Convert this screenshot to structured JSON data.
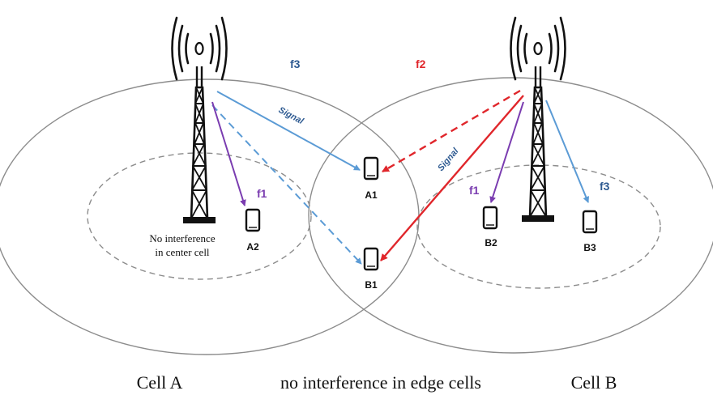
{
  "colors": {
    "blue": "#5b9bd5",
    "red": "#e0262b",
    "purple": "#7a3cb0",
    "outline": "#8c8c8c",
    "dash": "#8c8c8c",
    "tower": "#111111",
    "text": "#111111",
    "blue_label": "#2e5a91"
  },
  "labels": {
    "freq_f3_top": "f3",
    "freq_f2_top": "f2",
    "freq_f1_left": "f1",
    "freq_f1_right": "f1",
    "freq_f3_right": "f3",
    "signal_left": "Signal",
    "signal_right": "Signal",
    "center_note_line1": "No interference",
    "center_note_line2": "in center cell"
  },
  "phones": {
    "a1": "A1",
    "a2": "A2",
    "b1": "B1",
    "b2": "B2",
    "b3": "B3"
  },
  "footer": {
    "cell_a": "Cell A",
    "middle": "no interference in edge cells",
    "cell_b": "Cell B"
  }
}
